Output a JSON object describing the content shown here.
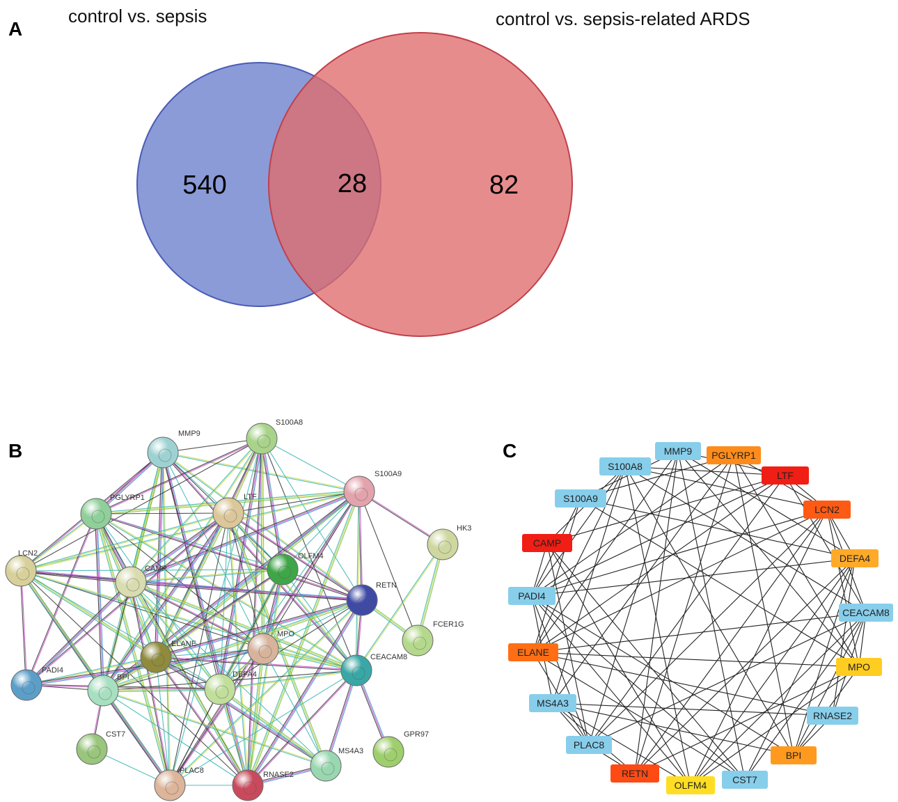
{
  "panels": {
    "a": "A",
    "b": "B",
    "c": "C"
  },
  "venn": {
    "sets": [
      {
        "title": "control vs. sepsis",
        "count": "540",
        "color": "#6a7fcd"
      },
      {
        "title": "control vs. sepsis-related ARDS",
        "count": "82",
        "color": "#e06c6c"
      }
    ],
    "overlap_count": "28"
  },
  "string_network": {
    "nodes": [
      {
        "label": "MMP9",
        "color": "#9ed2d2"
      },
      {
        "label": "S100A8",
        "color": "#a9d38a"
      },
      {
        "label": "S100A9",
        "color": "#e3a3ad"
      },
      {
        "label": "PGLYRP1",
        "color": "#8fcf9a"
      },
      {
        "label": "LTF",
        "color": "#dcc79a"
      },
      {
        "label": "HK3",
        "color": "#cfd7a0"
      },
      {
        "label": "LCN2",
        "color": "#d7d09a"
      },
      {
        "label": "CAMP",
        "color": "#d8dcae"
      },
      {
        "label": "OLFM4",
        "color": "#3fa648"
      },
      {
        "label": "RETN",
        "color": "#3f4aa6"
      },
      {
        "label": "FCER1G",
        "color": "#b5d98c"
      },
      {
        "label": "ELANE",
        "color": "#8f8a3c"
      },
      {
        "label": "MPO",
        "color": "#d7b39c"
      },
      {
        "label": "CEACAM8",
        "color": "#3aa7a7"
      },
      {
        "label": "PADI4",
        "color": "#5b9fc9"
      },
      {
        "label": "BPI",
        "color": "#a7e0c0"
      },
      {
        "label": "DEFA4",
        "color": "#c1de9b"
      },
      {
        "label": "CST7",
        "color": "#99c57c"
      },
      {
        "label": "GPR97",
        "color": "#9fcf6d"
      },
      {
        "label": "MS4A3",
        "color": "#99d7b0"
      },
      {
        "label": "PLAC8",
        "color": "#dcb59a"
      },
      {
        "label": "RNASE2",
        "color": "#c94a5d"
      }
    ]
  },
  "cytoscape_network": {
    "nodes": [
      {
        "label": "MMP9",
        "color": "#87ceeb"
      },
      {
        "label": "PGLYRP1",
        "color": "#ff8c1a"
      },
      {
        "label": "S100A8",
        "color": "#87ceeb"
      },
      {
        "label": "LTF",
        "color": "#f01e14"
      },
      {
        "label": "S100A9",
        "color": "#87ceeb"
      },
      {
        "label": "LCN2",
        "color": "#ff5a14"
      },
      {
        "label": "CAMP",
        "color": "#f01e14"
      },
      {
        "label": "DEFA4",
        "color": "#ffaa28"
      },
      {
        "label": "PADI4",
        "color": "#87ceeb"
      },
      {
        "label": "CEACAM8",
        "color": "#87ceeb"
      },
      {
        "label": "ELANE",
        "color": "#ff6e14"
      },
      {
        "label": "MPO",
        "color": "#ffcc22"
      },
      {
        "label": "MS4A3",
        "color": "#87ceeb"
      },
      {
        "label": "RNASE2",
        "color": "#87ceeb"
      },
      {
        "label": "PLAC8",
        "color": "#87ceeb"
      },
      {
        "label": "BPI",
        "color": "#ff9a1e"
      },
      {
        "label": "RETN",
        "color": "#ff4a14"
      },
      {
        "label": "OLFM4",
        "color": "#ffdd22"
      },
      {
        "label": "CST7",
        "color": "#87ceeb"
      }
    ]
  }
}
